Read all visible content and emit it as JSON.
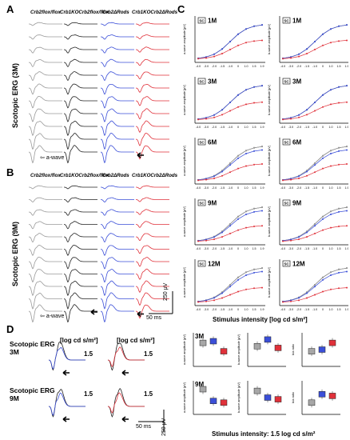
{
  "panels": {
    "A": "A",
    "B": "B",
    "C": "C",
    "D": "D"
  },
  "columns": {
    "c1": "Crb2flox/flox",
    "c2": "Crb1KOCrb2flox/flox",
    "c3": "Crb2ΔRods",
    "c4": "Crb1KOCrb2ΔRods"
  },
  "A": {
    "side_label": "Scotopic ERG (3M)",
    "awave": "a-wave"
  },
  "B": {
    "side_label": "Scotopic ERG (9M)",
    "awave": "a-wave",
    "scale_v": "250 μV",
    "scale_t": "50 ms"
  },
  "C": {
    "badge": "SC",
    "ages": [
      "1M",
      "3M",
      "6M",
      "9M",
      "12M"
    ],
    "ylabel_a": "a-wave amplitude [μV]",
    "ylabel_b": "b-wave amplitude [μV]",
    "xticks": [
      "-4.0",
      "-3.0",
      "-2.0",
      "-1.5",
      "-1.0",
      "0",
      "1.0",
      "1.5",
      "1.9"
    ],
    "xlabel": "Stimulus intensity [log cd s/m²]",
    "colors": {
      "black": "#444444",
      "grey": "#9a9a9a",
      "blue": "#3b4fd8",
      "red": "#e0313a"
    }
  },
  "D": {
    "row1": "Scotopic ERG 3M",
    "row2": "Scotopic ERG 9M",
    "unit_left": "[log cd s/m²]",
    "unit_right": "[log cd s/m²]",
    "intensity": "1.5",
    "scale_v": "250 μV",
    "scale_t": "50 ms",
    "box_ages": [
      "3M",
      "9M"
    ],
    "box_ylabels": [
      "a-wave amplitude (μV)",
      "b-wave amplitude (μV)",
      "b/a ratio"
    ],
    "xlabel": "Stimulus intensity: 1.5 log cd s/m²"
  }
}
